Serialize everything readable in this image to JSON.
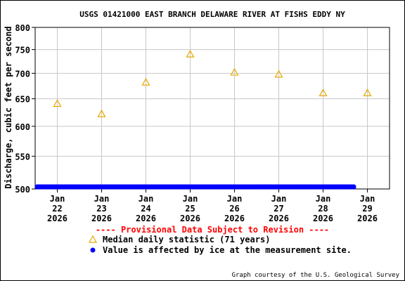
{
  "chart_data": {
    "type": "scatter",
    "title": "USGS 01421000 EAST BRANCH DELAWARE RIVER AT FISHS EDDY NY",
    "ylabel": "Discharge, cubic feet per second",
    "xlabel": "",
    "ylim": [
      500,
      800
    ],
    "y_scale": "log",
    "y_ticks": [
      500,
      550,
      600,
      650,
      700,
      750,
      800
    ],
    "grid": true,
    "x_ticks": [
      {
        "month": "Jan",
        "day": "22",
        "year": "2026"
      },
      {
        "month": "Jan",
        "day": "23",
        "year": "2026"
      },
      {
        "month": "Jan",
        "day": "24",
        "year": "2026"
      },
      {
        "month": "Jan",
        "day": "25",
        "year": "2026"
      },
      {
        "month": "Jan",
        "day": "26",
        "year": "2026"
      },
      {
        "month": "Jan",
        "day": "27",
        "year": "2026"
      },
      {
        "month": "Jan",
        "day": "28",
        "year": "2026"
      },
      {
        "month": "Jan",
        "day": "29",
        "year": "2026"
      }
    ],
    "x_range": [
      "2026-01-21T12:00",
      "2026-01-29T12:00"
    ],
    "series": [
      {
        "name": "Median daily statistic (71 years)",
        "marker": "triangle",
        "color": "#e6a800",
        "x": [
          "2026-01-22",
          "2026-01-23",
          "2026-01-24",
          "2026-01-25",
          "2026-01-26",
          "2026-01-27",
          "2026-01-28",
          "2026-01-29"
        ],
        "values": [
          641,
          622,
          682,
          740,
          702,
          698,
          661,
          661
        ]
      },
      {
        "name": "Value is affected by ice at the measurement site.",
        "marker": "dot",
        "color": "#0000ff",
        "x_start": "2026-01-21T12:00",
        "x_end": "2026-01-28T18:00",
        "value": 500
      }
    ],
    "provisional_note": "---- Provisional Data Subject to Revision ----",
    "provisional_color": "#ff0000",
    "credit": "Graph courtesy of the U.S. Geological Survey"
  }
}
